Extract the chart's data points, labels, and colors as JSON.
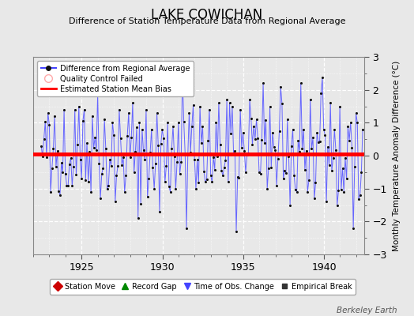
{
  "title": "LAKE COWICHAN",
  "subtitle": "Difference of Station Temperature Data from Regional Average",
  "ylabel": "Monthly Temperature Anomaly Difference (°C)",
  "ylim": [
    -3,
    3
  ],
  "xlim": [
    1922.0,
    1942.5
  ],
  "bias_value": 0.05,
  "background_color": "#e8e8e8",
  "plot_bg_color": "#e8e8e8",
  "line_color": "#6666ff",
  "dot_color": "#111111",
  "bias_color": "#ff0000",
  "watermark": "Berkeley Earth",
  "seed": 42,
  "n_points": 240
}
